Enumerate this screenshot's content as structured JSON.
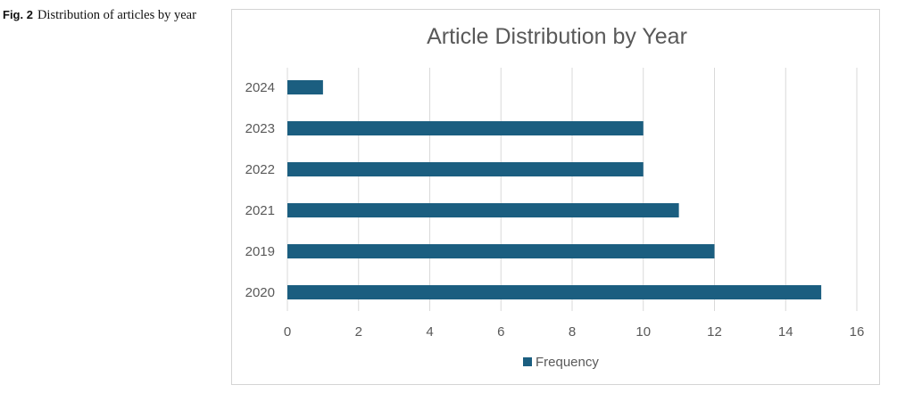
{
  "caption": {
    "label": "Fig. 2",
    "text": "Distribution of articles by year"
  },
  "chart_data": {
    "type": "bar",
    "orientation": "horizontal",
    "title": "Article Distribution by Year",
    "categories": [
      "2024",
      "2023",
      "2022",
      "2021",
      "2019",
      "2020"
    ],
    "series": [
      {
        "name": "Frequency",
        "values": [
          1,
          10,
          10,
          11,
          12,
          15
        ],
        "color": "#1b5e80"
      }
    ],
    "xlim": [
      0,
      16
    ],
    "xticks": [
      0,
      2,
      4,
      6,
      8,
      10,
      12,
      14,
      16
    ],
    "xlabel": "",
    "ylabel": "",
    "grid": "vertical",
    "legend": "bottom-center"
  }
}
